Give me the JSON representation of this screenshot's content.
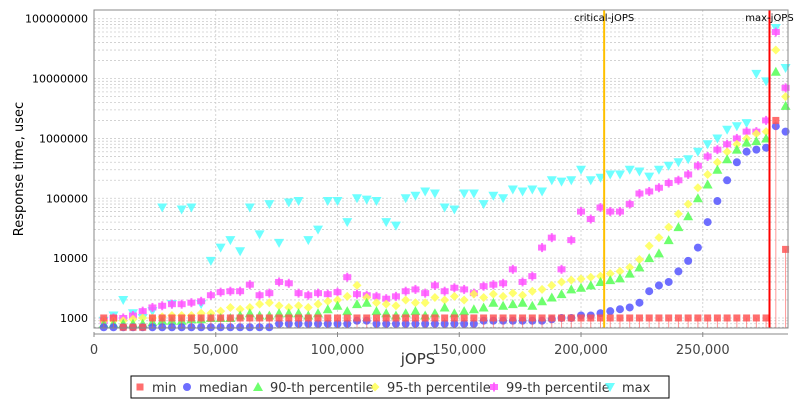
{
  "chart_data": {
    "type": "scatter",
    "title": "",
    "xlabel": "jOPS",
    "ylabel": "Response time, usec",
    "xlim": [
      0,
      285000
    ],
    "ylim": [
      680,
      140000000
    ],
    "yscale": "log",
    "grid": true,
    "legend_position": "bottom",
    "x_ticks": [
      0,
      50000,
      100000,
      150000,
      200000,
      250000
    ],
    "x_tick_labels": [
      "0",
      "50,000",
      "100,000",
      "150,000",
      "200,000",
      "250,000"
    ],
    "y_ticks": [
      1000,
      10000,
      100000,
      1000000,
      10000000,
      100000000
    ],
    "y_tick_labels": [
      "1000",
      "10000",
      "100000",
      "1000000",
      "10000000",
      "100000000"
    ],
    "markers": [
      {
        "label": "critical-jOPS",
        "x": 209500,
        "color": "#ffc000"
      },
      {
        "label": "max-jOPS",
        "x": 277400,
        "color": "#ff0000"
      }
    ],
    "x": [
      4000,
      8000,
      12000,
      16000,
      20000,
      24000,
      28000,
      32000,
      36000,
      40000,
      44000,
      48000,
      52000,
      56000,
      60000,
      64000,
      68000,
      72000,
      76000,
      80000,
      84000,
      88000,
      92000,
      96000,
      100000,
      104000,
      108000,
      112000,
      116000,
      120000,
      124000,
      128000,
      132000,
      136000,
      140000,
      144000,
      148000,
      152000,
      156000,
      160000,
      164000,
      168000,
      172000,
      176000,
      180000,
      184000,
      188000,
      192000,
      196000,
      200000,
      204000,
      208000,
      212000,
      216000,
      220000,
      224000,
      228000,
      232000,
      236000,
      240000,
      244000,
      248000,
      252000,
      256000,
      260000,
      264000,
      268000,
      272000,
      276000,
      280000,
      284000
    ],
    "series": [
      {
        "name": "min",
        "color": "#ff5555",
        "shape": "square",
        "values": [
          1000,
          1000,
          700,
          700,
          700,
          1000,
          1000,
          1000,
          1000,
          1000,
          1000,
          1000,
          1000,
          1000,
          1000,
          1000,
          1000,
          1000,
          1000,
          1000,
          1000,
          1000,
          1000,
          1000,
          1000,
          1000,
          1000,
          1000,
          1000,
          1000,
          1000,
          1000,
          1000,
          1000,
          1000,
          1000,
          1000,
          1000,
          1000,
          1000,
          1000,
          1000,
          1000,
          1000,
          1000,
          1000,
          1000,
          1000,
          1000,
          1000,
          1000,
          1000,
          1000,
          1000,
          1000,
          1000,
          1000,
          1000,
          1000,
          1000,
          1000,
          1000,
          1000,
          1000,
          1000,
          1000,
          1000,
          1000,
          1000,
          2000000,
          14000
        ]
      },
      {
        "name": "median",
        "color": "#5555ff",
        "shape": "circle",
        "values": [
          700,
          700,
          700,
          700,
          700,
          700,
          700,
          700,
          700,
          700,
          700,
          700,
          700,
          700,
          700,
          700,
          700,
          700,
          800,
          800,
          800,
          800,
          800,
          800,
          800,
          800,
          900,
          900,
          800,
          800,
          800,
          800,
          800,
          800,
          800,
          800,
          800,
          800,
          800,
          900,
          900,
          900,
          900,
          900,
          900,
          900,
          950,
          1000,
          1000,
          1100,
          1100,
          1200,
          1300,
          1400,
          1500,
          1800,
          2800,
          3500,
          4000,
          6000,
          9000,
          15000,
          40000,
          90000,
          200000,
          400000,
          600000,
          650000,
          700000,
          1600000,
          1300000
        ]
      },
      {
        "name": "90-th percentile",
        "color": "#55ff55",
        "shape": "triangle",
        "values": [
          800,
          800,
          800,
          800,
          800,
          850,
          900,
          900,
          900,
          950,
          950,
          1000,
          1000,
          1000,
          1100,
          1200,
          1100,
          1100,
          1200,
          1200,
          1200,
          1100,
          1200,
          1400,
          1600,
          1300,
          1700,
          1800,
          1300,
          1200,
          1100,
          1200,
          1300,
          1100,
          1200,
          1500,
          1200,
          1300,
          1400,
          1500,
          1800,
          1600,
          1700,
          1800,
          1600,
          1900,
          2200,
          2500,
          3000,
          3200,
          3500,
          4000,
          4300,
          4600,
          5500,
          7000,
          10000,
          12000,
          20000,
          33000,
          50000,
          100000,
          170000,
          300000,
          450000,
          650000,
          850000,
          900000,
          1000000,
          13000000,
          3500000
        ]
      },
      {
        "name": "95-th percentile",
        "color": "#ffff55",
        "shape": "diamond",
        "values": [
          900,
          900,
          900,
          950,
          1000,
          1000,
          1050,
          1100,
          1100,
          1100,
          1200,
          1200,
          1300,
          1500,
          1400,
          1500,
          1700,
          1800,
          1600,
          1500,
          1600,
          1500,
          1700,
          1900,
          2000,
          2300,
          3500,
          2200,
          1800,
          1700,
          1600,
          2000,
          1800,
          1800,
          2200,
          2000,
          2300,
          2000,
          2500,
          2200,
          2500,
          2300,
          2600,
          2400,
          2800,
          3000,
          3500,
          4000,
          4300,
          4500,
          4800,
          5000,
          5500,
          6000,
          7000,
          9500,
          16000,
          22000,
          33000,
          55000,
          80000,
          150000,
          250000,
          400000,
          600000,
          800000,
          1000000,
          1200000,
          1300000,
          30000000,
          5000000
        ]
      },
      {
        "name": "99-th percentile",
        "color": "#ff55ff",
        "shape": "plus-square",
        "values": [
          900,
          1000,
          1000,
          1100,
          1300,
          1500,
          1600,
          1700,
          1700,
          1800,
          1900,
          2400,
          2700,
          2800,
          2800,
          3600,
          2400,
          2600,
          4000,
          3800,
          2600,
          2400,
          2600,
          2500,
          2700,
          4800,
          2500,
          2400,
          2300,
          2100,
          2300,
          2800,
          3000,
          2600,
          3500,
          2800,
          3200,
          3000,
          2600,
          3400,
          3600,
          3800,
          6500,
          4000,
          5000,
          15000,
          22000,
          6500,
          20000,
          60000,
          45000,
          70000,
          60000,
          60000,
          80000,
          120000,
          130000,
          150000,
          180000,
          200000,
          250000,
          350000,
          500000,
          650000,
          800000,
          1000000,
          1300000,
          1300000,
          2000000,
          60000000,
          7000000
        ]
      },
      {
        "name": "max",
        "color": "#55ffff",
        "shape": "triangle-down",
        "values": [
          900,
          1100,
          2000,
          1200,
          1000,
          1300,
          70000,
          1700,
          65000,
          70000,
          1700,
          9000,
          15000,
          20000,
          13000,
          70000,
          25000,
          80000,
          18000,
          85000,
          90000,
          20000,
          30000,
          90000,
          90000,
          40000,
          100000,
          95000,
          90000,
          40000,
          35000,
          100000,
          110000,
          130000,
          120000,
          70000,
          65000,
          120000,
          120000,
          80000,
          110000,
          100000,
          140000,
          130000,
          140000,
          130000,
          200000,
          190000,
          200000,
          300000,
          200000,
          220000,
          250000,
          250000,
          300000,
          280000,
          230000,
          300000,
          350000,
          400000,
          450000,
          600000,
          800000,
          1000000,
          1400000,
          1600000,
          1800000,
          12000000,
          9000000,
          70000000,
          15000000
        ]
      }
    ]
  }
}
